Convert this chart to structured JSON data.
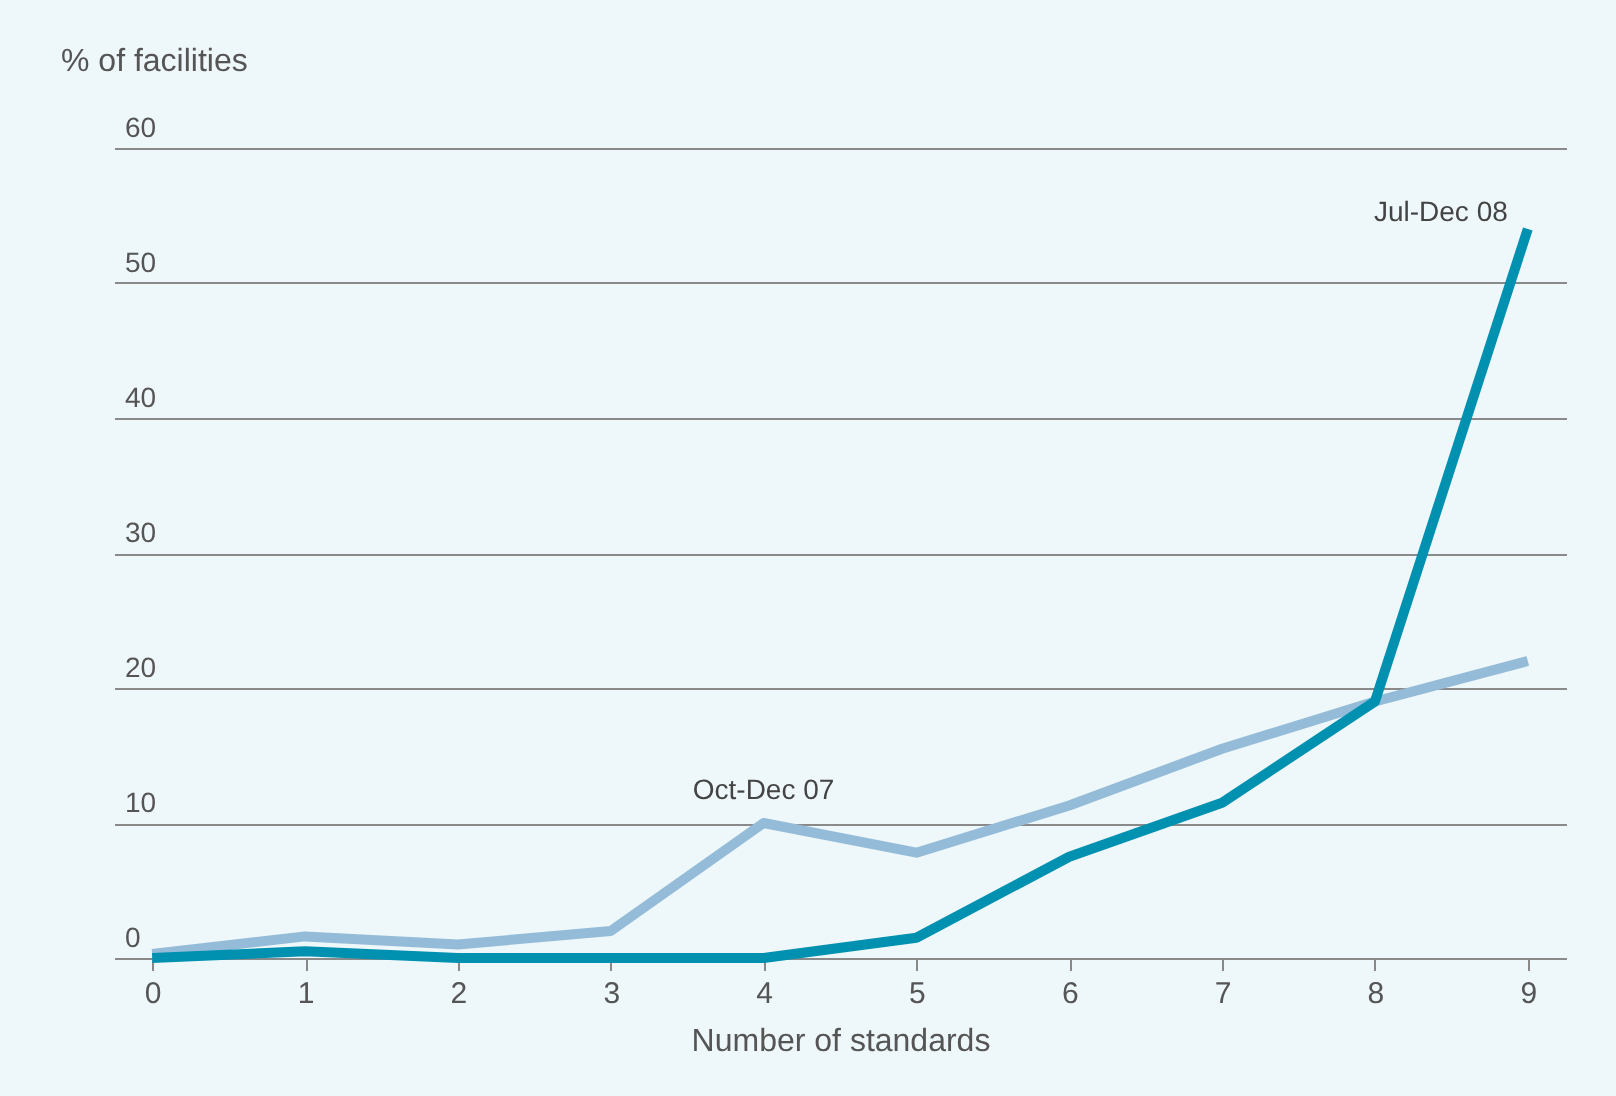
{
  "chart_data": {
    "type": "line",
    "xlabel": "Number of standards",
    "ylabel": "% of facilities",
    "x": [
      0,
      1,
      2,
      3,
      4,
      5,
      6,
      7,
      8,
      9
    ],
    "series": [
      {
        "name": "Oct-Dec 07",
        "color": "#94bcd8",
        "values": [
          0.3,
          1.6,
          1.0,
          2.0,
          10.0,
          7.8,
          11.3,
          15.5,
          19.0,
          22.0
        ]
      },
      {
        "name": "Jul-Dec 08",
        "color": "#0090b0",
        "values": [
          0,
          0.5,
          0,
          0,
          0,
          1.5,
          7.5,
          11.5,
          19.0,
          54.0
        ]
      }
    ],
    "xlim": [
      -0.25,
      9.25
    ],
    "xticks": [
      0,
      1,
      2,
      3,
      4,
      5,
      6,
      7,
      8,
      9
    ],
    "ylim": [
      0,
      60
    ],
    "yticks": [
      0,
      10,
      20,
      30,
      40,
      50,
      60
    ],
    "grid": "y",
    "legend": false,
    "line_style": "solid",
    "marker": "none"
  }
}
